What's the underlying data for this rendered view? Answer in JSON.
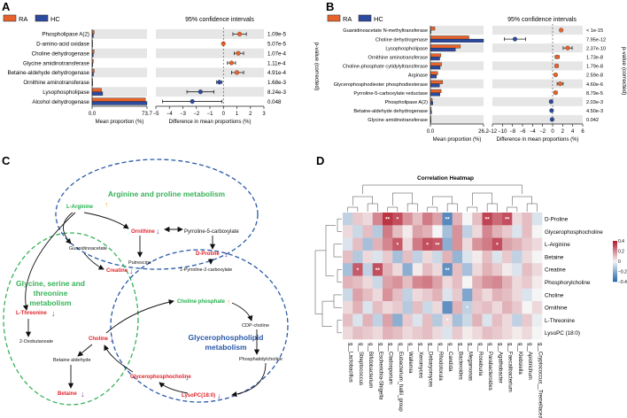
{
  "colors": {
    "ra": "#e8632b",
    "hc": "#2c4aa0",
    "row_band": "#e6e6e6",
    "dot": "#e8632b",
    "dot_neg": "#2c4aa0",
    "circle_blue": "#2b5aa8",
    "circle_green": "#38b25a",
    "red_text": "#e0242a",
    "green_text": "#23b14d",
    "arrow_down": "#7a3fa0",
    "arrow_up": "#f0b43a"
  },
  "panel_a": {
    "letter": "A",
    "legend": [
      "RA",
      "HC"
    ],
    "ci_title": "95% confidence intervals",
    "pvalue_axis": "p-value (corrected)",
    "mean_axis_label": "Mean proportion (%)",
    "mean_ticks": [
      "0.0",
      "73.7"
    ],
    "mean_max": 73.7,
    "diff_axis_label": "Difference in mean proportions (%)",
    "diff_ticks": [
      "−5",
      "−4",
      "−3",
      "−2",
      "−1",
      "0",
      "1",
      "2",
      "3"
    ],
    "diff_range": [
      -5,
      3
    ],
    "rows": [
      {
        "label": "Phospholipase A(2)",
        "ra": 2.8,
        "hc": 1.7,
        "diff": 1.2,
        "lo": 0.7,
        "hi": 1.7,
        "p": "1.09e-5"
      },
      {
        "label": "D-amino-acid oxidase",
        "ra": 0.3,
        "hc": 0.0,
        "diff": 0.0,
        "lo": 0.0,
        "hi": 0.0,
        "p": "5.07e-5"
      },
      {
        "label": "Choline dehydrogenase",
        "ra": 2.6,
        "hc": 1.6,
        "diff": 1.1,
        "lo": 0.8,
        "hi": 1.5,
        "p": "1.07e-4"
      },
      {
        "label": "Glycine amidinotransferase",
        "ra": 1.6,
        "hc": 1.0,
        "diff": 0.6,
        "lo": 0.3,
        "hi": 0.9,
        "p": "1.11e-4"
      },
      {
        "label": "Betaine-aldehyde dehydrogenase",
        "ra": 2.9,
        "hc": 1.8,
        "diff": 1.0,
        "lo": 0.6,
        "hi": 1.5,
        "p": "4.91e-4"
      },
      {
        "label": "Ornithine aminotransferase",
        "ra": 0.6,
        "hc": 0.9,
        "diff": -0.3,
        "lo": -0.5,
        "hi": -0.1,
        "p": "1.68e-3"
      },
      {
        "label": "Lysophospholipase",
        "ra": 12.5,
        "hc": 14.2,
        "diff": -1.7,
        "lo": -2.7,
        "hi": -0.7,
        "p": "8.24e-3"
      },
      {
        "label": "Alcohol dehydrogenase",
        "ra": 71.5,
        "hc": 73.7,
        "diff": -2.3,
        "lo": -4.5,
        "hi": -0.1,
        "p": "0.048"
      }
    ]
  },
  "panel_b": {
    "letter": "B",
    "legend": [
      "RA",
      "HC"
    ],
    "ci_title": "95% confidence intervals",
    "pvalue_axis": "p-value (corrected)",
    "mean_axis_label": "Mean proportion (%)",
    "mean_ticks": [
      "0.0",
      "26.2"
    ],
    "mean_max": 26.2,
    "diff_axis_label": "Difference in mean proportions (%)",
    "diff_ticks": [
      "−12",
      "−10",
      "−8",
      "−6",
      "−4",
      "−2",
      "0",
      "2",
      "4",
      "6"
    ],
    "diff_range": [
      -12,
      6
    ],
    "rows": [
      {
        "label": "Guanidinoacetate N-methyltransferase",
        "ra": 2.2,
        "hc": 0.3,
        "diff": 1.7,
        "lo": 1.5,
        "hi": 1.9,
        "p": "< 1e-15"
      },
      {
        "label": "Choline dehydrogenase",
        "ra": 19.0,
        "hc": 26.2,
        "diff": -7.5,
        "lo": -9.6,
        "hi": -5.4,
        "p": "7.95e-12"
      },
      {
        "label": "Lysophospholipase",
        "ra": 14.8,
        "hc": 12.3,
        "diff": 3.0,
        "lo": 2.1,
        "hi": 3.9,
        "p": "2.37e-10"
      },
      {
        "label": "Ornithine aminotransferase",
        "ra": 5.2,
        "hc": 4.6,
        "diff": 0.9,
        "lo": 0.5,
        "hi": 1.3,
        "p": "1.73e-8"
      },
      {
        "label": "Choline-phosphate cytidylyltransferase",
        "ra": 5.5,
        "hc": 4.8,
        "diff": 0.8,
        "lo": 0.5,
        "hi": 1.1,
        "p": "1.79e-8"
      },
      {
        "label": "Arginase",
        "ra": 3.6,
        "hc": 3.0,
        "diff": 0.6,
        "lo": 0.4,
        "hi": 0.8,
        "p": "2.59e-8"
      },
      {
        "label": "Glycerophosphodiester phosphodiesterase",
        "ra": 6.0,
        "hc": 4.5,
        "diff": 1.5,
        "lo": 0.9,
        "hi": 2.1,
        "p": "4.60e-6"
      },
      {
        "label": "Pyrroline-5-carboxylate reductase",
        "ra": 5.3,
        "hc": 4.7,
        "diff": 0.6,
        "lo": 0.3,
        "hi": 0.9,
        "p": "8.79e-5"
      },
      {
        "label": "Phospholipase A(2)",
        "ra": 0.9,
        "hc": 1.2,
        "diff": -0.3,
        "lo": -0.5,
        "hi": -0.1,
        "p": "2.03e-3"
      },
      {
        "label": "Betaine-aldehyde dehydrogenase",
        "ra": 0.4,
        "hc": 0.6,
        "diff": -0.2,
        "lo": -0.4,
        "hi": -0.1,
        "p": "4.50e-3"
      },
      {
        "label": "Glycine amidinotransferase",
        "ra": 0.2,
        "hc": 0.3,
        "diff": -0.1,
        "lo": -0.2,
        "hi": 0.0,
        "p": "0.042"
      }
    ]
  },
  "panel_c": {
    "letter": "C",
    "arginine_title": [
      "Arginine and proline metabolism"
    ],
    "glycine_title": [
      "Glycine, serine and",
      "threonine",
      "metabolism"
    ],
    "glycero_title": [
      "Glycerophospholipid",
      "metabolism"
    ],
    "nodes": {
      "l_arginine": "L-Arginine",
      "guanidinoacetate": "Guanidinoacetate",
      "ornithine": "Ornithine",
      "p5c": "Pyrroline-5-carboxylate",
      "putrescine": "Putrescine",
      "d_proline": "D-Proline",
      "creatine": "Creatine",
      "pyrroline": "1-Pyrroline-2-carboxylate",
      "l_threonine": "L-Threonine",
      "oxobutanoate": "2-Oxobutanoate",
      "choline": "Choline",
      "betaine_aldehyde": "Betaine aldehyde",
      "betaine": "Betaine",
      "choline_phosphate": "Choline phosphate",
      "cdp_choline": "CDP-choline",
      "phosphatidylcholine": "Phosphatidylcholine",
      "glycerophosphocholine": "Glycerophosphocholine",
      "lysopc": "LysoPC(18:0)"
    }
  },
  "chart_data": [
    {
      "type": "bar",
      "panel": "A",
      "title": "95% confidence intervals",
      "categories": [
        "Phospholipase A(2)",
        "D-amino-acid oxidase",
        "Choline dehydrogenase",
        "Glycine amidinotransferase",
        "Betaine-aldehyde dehydrogenase",
        "Ornithine aminotransferase",
        "Lysophospholipase",
        "Alcohol dehydrogenase"
      ],
      "series": [
        {
          "name": "RA",
          "values": [
            2.8,
            0.3,
            2.6,
            1.6,
            2.9,
            0.6,
            12.5,
            71.5
          ]
        },
        {
          "name": "HC",
          "values": [
            1.7,
            0.0,
            1.6,
            1.0,
            1.8,
            0.9,
            14.2,
            73.7
          ]
        }
      ],
      "xlabel": "Mean proportion (%)",
      "xlim": [
        0,
        73.7
      ]
    },
    {
      "type": "bar",
      "panel": "B",
      "title": "95% confidence intervals",
      "categories": [
        "Guanidinoacetate N-methyltransferase",
        "Choline dehydrogenase",
        "Lysophospholipase",
        "Ornithine aminotransferase",
        "Choline-phosphate cytidylyltransferase",
        "Arginase",
        "Glycerophosphodiester phosphodiesterase",
        "Pyrroline-5-carboxylate reductase",
        "Phospholipase A(2)",
        "Betaine-aldehyde dehydrogenase",
        "Glycine amidinotransferase"
      ],
      "series": [
        {
          "name": "RA",
          "values": [
            2.2,
            19.0,
            14.8,
            5.2,
            5.5,
            3.6,
            6.0,
            5.3,
            0.9,
            0.4,
            0.2
          ]
        },
        {
          "name": "HC",
          "values": [
            0.3,
            26.2,
            12.3,
            4.6,
            4.8,
            3.0,
            4.5,
            4.7,
            1.2,
            0.6,
            0.3
          ]
        }
      ],
      "xlabel": "Mean proportion (%)",
      "xlim": [
        0,
        26.2
      ]
    },
    {
      "type": "heatmap",
      "panel": "D",
      "title": "Correlation Heatmap",
      "rows": [
        "D-Proline",
        "Glycerophosphocholine",
        "L-Arginine",
        "Betaine",
        "Creatine",
        "Phosphorylcholine",
        "Choline",
        "Ornithine",
        "L-Threonine",
        "LysoPC (18:0)"
      ],
      "columns": [
        "g__Lactobacillus",
        "g__Streptococcus",
        "g__Bifidobacterium",
        "g__Escherichia-Shigella",
        "g__Cladosporium",
        "g__Eubacterium_hallii_group",
        "g__Wallemia",
        "g__Xeromyces",
        "g__Debaryomyces",
        "g__Rhodotorula",
        "g__Candida",
        "g__Bacteroides",
        "g__Megamonas",
        "g__Roseburia",
        "g__Parabacteroides",
        "g__Agathobacter",
        "g__Faecalibacterium",
        "g__Klebsiella",
        "g__Apiotrichum",
        "g__Cryptococcus__Tremellaceae"
      ],
      "values": [
        [
          -0.1,
          0.08,
          0.05,
          0.2,
          0.35,
          0.3,
          0.18,
          0.1,
          0.22,
          0.15,
          -0.3,
          0.12,
          0.0,
          0.1,
          0.32,
          0.25,
          0.3,
          0.05,
          0.1,
          -0.05
        ],
        [
          0.05,
          -0.08,
          0.1,
          -0.12,
          0.22,
          0.1,
          0.02,
          0.15,
          0.12,
          0.0,
          -0.15,
          0.18,
          -0.1,
          0.05,
          0.2,
          0.12,
          0.08,
          -0.05,
          0.1,
          0.0
        ],
        [
          -0.05,
          0.1,
          -0.15,
          0.12,
          0.2,
          0.28,
          0.05,
          0.22,
          0.3,
          0.28,
          -0.2,
          0.18,
          0.05,
          0.18,
          0.22,
          0.3,
          0.15,
          0.12,
          0.08,
          0.05
        ],
        [
          0.1,
          -0.12,
          0.05,
          -0.05,
          0.08,
          -0.15,
          0.1,
          -0.1,
          0.05,
          -0.08,
          0.12,
          -0.18,
          -0.05,
          0.02,
          0.1,
          -0.05,
          0.08,
          -0.1,
          0.05,
          0.0
        ],
        [
          -0.15,
          0.28,
          -0.1,
          0.3,
          0.12,
          0.05,
          -0.2,
          0.02,
          0.1,
          0.05,
          -0.28,
          0.1,
          -0.15,
          0.05,
          0.12,
          0.08,
          0.02,
          -0.05,
          0.1,
          0.05
        ],
        [
          0.12,
          0.1,
          0.05,
          -0.08,
          0.15,
          0.18,
          0.1,
          0.2,
          0.22,
          0.15,
          0.05,
          0.1,
          0.0,
          0.12,
          0.18,
          0.2,
          0.12,
          0.05,
          0.08,
          0.02
        ],
        [
          -0.08,
          0.15,
          0.1,
          0.05,
          0.18,
          0.1,
          -0.1,
          0.05,
          0.08,
          0.12,
          -0.05,
          0.08,
          -0.22,
          0.1,
          0.05,
          0.12,
          0.1,
          0.05,
          -0.05,
          0.0
        ],
        [
          0.05,
          0.12,
          -0.05,
          0.1,
          0.05,
          0.08,
          -0.12,
          0.1,
          -0.08,
          0.05,
          -0.28,
          0.12,
          -0.1,
          0.08,
          0.1,
          0.05,
          0.12,
          0.08,
          0.0,
          0.05
        ],
        [
          0.1,
          -0.05,
          0.12,
          -0.1,
          0.15,
          -0.2,
          0.08,
          -0.05,
          0.1,
          -0.12,
          0.05,
          -0.15,
          -0.08,
          0.12,
          -0.05,
          0.1,
          0.05,
          -0.1,
          0.08,
          -0.02
        ],
        [
          0.05,
          0.1,
          0.08,
          0.05,
          0.12,
          0.1,
          0.05,
          0.08,
          0.1,
          0.05,
          -0.05,
          0.08,
          0.02,
          0.05,
          0.1,
          0.08,
          0.05,
          0.02,
          0.05,
          0.0
        ]
      ],
      "significance": [
        {
          "row": 0,
          "col": 4,
          "mark": "**"
        },
        {
          "row": 0,
          "col": 5,
          "mark": "*"
        },
        {
          "row": 0,
          "col": 10,
          "mark": "**"
        },
        {
          "row": 0,
          "col": 14,
          "mark": "**"
        },
        {
          "row": 0,
          "col": 16,
          "mark": "**"
        },
        {
          "row": 2,
          "col": 5,
          "mark": "*"
        },
        {
          "row": 2,
          "col": 8,
          "mark": "*"
        },
        {
          "row": 2,
          "col": 9,
          "mark": "**"
        },
        {
          "row": 2,
          "col": 15,
          "mark": "*"
        },
        {
          "row": 4,
          "col": 1,
          "mark": "*"
        },
        {
          "row": 4,
          "col": 3,
          "mark": "**"
        },
        {
          "row": 4,
          "col": 10,
          "mark": "**"
        },
        {
          "row": 7,
          "col": 12,
          "mark": "*"
        },
        {
          "row": 8,
          "col": 10,
          "mark": "*"
        }
      ],
      "colorbar_ticks": [
        "0.4",
        "0.2",
        "0",
        "−0.2",
        "−0.4"
      ],
      "clim": [
        -0.4,
        0.4
      ]
    }
  ],
  "panel_d": {
    "letter": "D",
    "title": "Correlation Heatmap"
  }
}
